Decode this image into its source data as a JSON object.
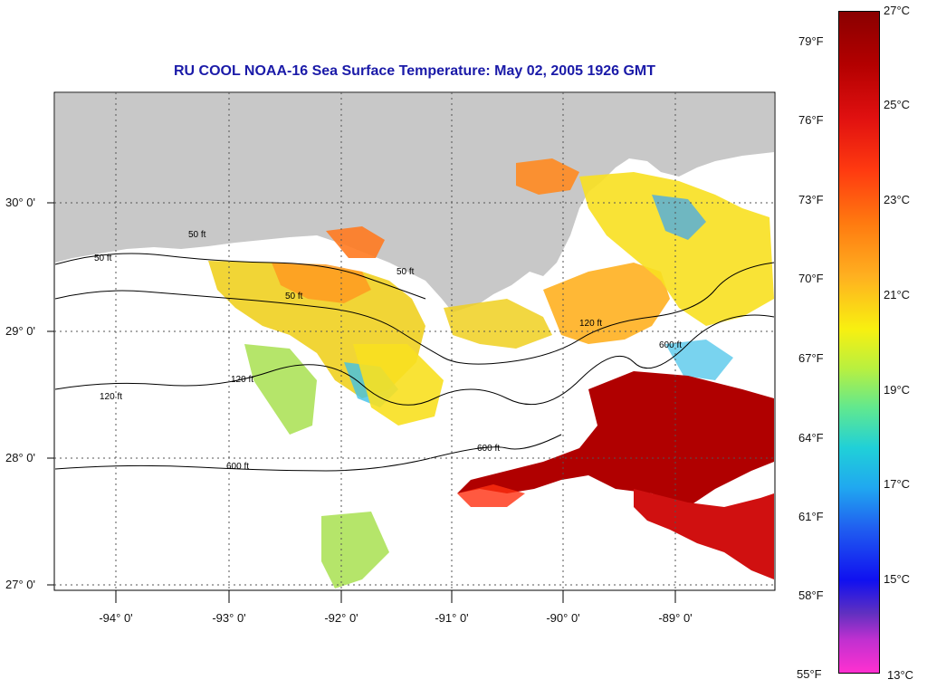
{
  "title": "RU COOL  NOAA-16  Sea Surface Temperature:  May 02, 2005 1926 GMT",
  "latitude_labels": [
    "30° 0'",
    "29° 0'",
    "28° 0'",
    "27° 0'"
  ],
  "longitude_labels": [
    "-94° 0'",
    "-93° 0'",
    "-92° 0'",
    "-91° 0'",
    "-90° 0'",
    "-89° 0'"
  ],
  "contour_labels": [
    "50 ft",
    "50 ft",
    "50 ft",
    "50 ft",
    "120 ft",
    "120 ft",
    "120 ft",
    "600 ft",
    "600 ft",
    "600 ft"
  ],
  "colorbar": {
    "fahrenheit": [
      "79°F",
      "76°F",
      "73°F",
      "70°F",
      "67°F",
      "64°F",
      "61°F",
      "58°F",
      "55°F"
    ],
    "celsius": [
      "27°C",
      "25°C",
      "23°C",
      "21°C",
      "19°C",
      "17°C",
      "15°C",
      "13°C"
    ]
  },
  "colors": {
    "land": "#c8c8c8",
    "title": "#1a1aa8",
    "warm": "#b00000",
    "cool": "#2070f0"
  }
}
